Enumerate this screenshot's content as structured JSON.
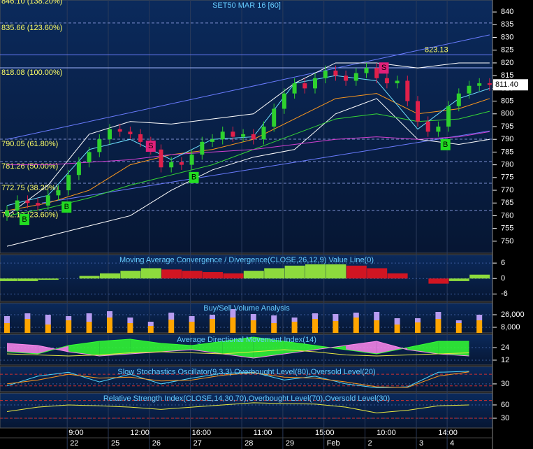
{
  "chart_data": [
    {
      "type": "candlestick",
      "title": "SET50 MAR 16  [60]",
      "time_labels": [
        null,
        null,
        null,
        null,
        null,
        null,
        "9:00",
        null,
        null,
        null,
        null,
        null,
        "12:00",
        null,
        null,
        null,
        null,
        null,
        "16:00",
        null,
        null,
        null,
        null,
        null,
        "11:00",
        null,
        null,
        null,
        null,
        null,
        "15:00",
        null,
        null,
        null,
        null,
        null,
        "10:00",
        null,
        null,
        null,
        null,
        null,
        "14:00",
        null,
        null,
        null,
        null,
        null
      ],
      "date_labels": [
        null,
        null,
        null,
        null,
        null,
        null,
        "22",
        null,
        null,
        null,
        "25",
        null,
        null,
        null,
        "26",
        null,
        null,
        null,
        "27",
        null,
        null,
        null,
        null,
        "28",
        null,
        null,
        null,
        "29",
        null,
        null,
        null,
        "Feb",
        null,
        null,
        null,
        "2",
        null,
        null,
        null,
        null,
        "3",
        null,
        null,
        "4",
        null,
        null,
        null,
        null
      ],
      "open": [
        760,
        762,
        766,
        765,
        764,
        768,
        770,
        776,
        781,
        785,
        790,
        794,
        793,
        792,
        789,
        786,
        779,
        781,
        780,
        784,
        789,
        790,
        793,
        791,
        792,
        790,
        795,
        802,
        808,
        812,
        810,
        814,
        817,
        815,
        813,
        816,
        818,
        814,
        812,
        813,
        805,
        797,
        793,
        795,
        803,
        808,
        811,
        812
      ],
      "high": [
        764,
        768,
        768,
        767,
        770,
        772,
        778,
        783,
        787,
        792,
        796,
        796,
        795,
        794,
        791,
        788,
        783,
        783,
        786,
        791,
        792,
        795,
        795,
        794,
        794,
        797,
        804,
        810,
        814,
        814,
        816,
        819,
        819,
        817,
        818,
        820,
        820,
        816,
        815,
        815,
        807,
        799,
        797,
        805,
        810,
        813,
        814,
        814
      ],
      "low": [
        758,
        760,
        763,
        762,
        762,
        766,
        768,
        774,
        779,
        783,
        788,
        791,
        790,
        787,
        784,
        777,
        777,
        778,
        778,
        782,
        787,
        788,
        789,
        789,
        788,
        788,
        793,
        800,
        806,
        808,
        808,
        812,
        813,
        811,
        811,
        814,
        812,
        810,
        810,
        803,
        795,
        791,
        791,
        793,
        801,
        806,
        809,
        809
      ],
      "close": [
        762,
        766,
        765,
        764,
        768,
        770,
        776,
        781,
        785,
        790,
        794,
        793,
        792,
        789,
        786,
        779,
        781,
        780,
        784,
        789,
        790,
        793,
        791,
        792,
        790,
        795,
        802,
        808,
        812,
        810,
        814,
        817,
        815,
        813,
        816,
        818,
        814,
        812,
        813,
        805,
        797,
        793,
        795,
        803,
        808,
        811,
        812,
        811.4
      ],
      "up_color": "#2ed12e",
      "down_color": "#e0204a",
      "ylim": [
        745.3,
        844.7
      ],
      "yticks": [
        750,
        755,
        760,
        765,
        770,
        775,
        780,
        785,
        790,
        795,
        800,
        805,
        810,
        815,
        820,
        825,
        830,
        835,
        840
      ],
      "last_price_label": "811.40",
      "levels": [
        {
          "value": 846.1,
          "label": "846.10 (138.20%)",
          "style": "dashed"
        },
        {
          "value": 835.66,
          "label": "835.66 (123.60%)",
          "style": "dashed"
        },
        {
          "value": 818.08,
          "label": "818.08 (100.00%)",
          "style": "solid"
        },
        {
          "value": 790.05,
          "label": "790.05 (61.80%)",
          "style": "dashed"
        },
        {
          "value": 781.26,
          "label": "781.26 (50.00%)",
          "style": "dashed"
        },
        {
          "value": 772.75,
          "label": "772.75 (38.20%)",
          "style": "dashed"
        },
        {
          "value": 762.13,
          "label": "762.13 (23.60%)",
          "style": "dashed"
        }
      ],
      "resistance": {
        "value": 823.13,
        "label": "823.13"
      },
      "overlays": [
        {
          "color": "#ffffff",
          "x": [
            0,
            4,
            8,
            12,
            16,
            20,
            24,
            28,
            32,
            36,
            40,
            44,
            47
          ],
          "values": [
            760,
            772,
            792,
            797,
            796,
            798,
            800,
            812,
            820,
            820,
            818,
            820,
            820
          ]
        },
        {
          "color": "#ffffff",
          "x": [
            0,
            4,
            8,
            12,
            16,
            20,
            24,
            28,
            32,
            36,
            40,
            44,
            47
          ],
          "values": [
            748,
            752,
            756,
            760,
            770,
            778,
            783,
            786,
            800,
            806,
            790,
            788,
            790
          ]
        },
        {
          "color": "#ff9a1e",
          "x": [
            0,
            4,
            8,
            12,
            16,
            20,
            24,
            28,
            32,
            36,
            40,
            44,
            47
          ],
          "values": [
            762,
            765,
            770,
            780,
            784,
            786,
            790,
            798,
            806,
            808,
            800,
            802,
            806
          ]
        },
        {
          "color": "#36d636",
          "x": [
            0,
            4,
            8,
            12,
            16,
            20,
            24,
            28,
            32,
            36,
            40,
            44,
            47
          ],
          "values": [
            760,
            763,
            767,
            772,
            776,
            780,
            786,
            792,
            798,
            800,
            797,
            798,
            801
          ]
        },
        {
          "color": "#d040d0",
          "x": [
            0,
            4,
            8,
            12,
            16,
            20,
            24,
            28,
            32,
            36,
            40,
            44,
            47
          ],
          "values": [
            780,
            780,
            781,
            782,
            784,
            785,
            786,
            788,
            790,
            791,
            790,
            791,
            793
          ]
        },
        {
          "color": "#6fe0ff",
          "x": [
            0,
            4,
            8,
            12,
            16,
            20,
            24,
            28,
            32,
            36,
            40,
            44,
            47
          ],
          "values": [
            764,
            768,
            786,
            790,
            782,
            790,
            791,
            812,
            815,
            813,
            794,
            806,
            810
          ]
        }
      ],
      "trendlines": [
        {
          "color": "#6a7cff",
          "x": [
            0,
            47
          ],
          "values": [
            790,
            831
          ]
        },
        {
          "color": "#6a7cff",
          "x": [
            3.4,
            47
          ],
          "values": [
            765,
            793.3
          ]
        }
      ],
      "signals": [
        {
          "label": "B",
          "color": "#22dd22",
          "x": 1.7,
          "y": 758.5
        },
        {
          "label": "B",
          "color": "#22dd22",
          "x": 5.8,
          "y": 763.4
        },
        {
          "label": "S",
          "color": "#e0207a",
          "x": 14,
          "y": 787.3
        },
        {
          "label": "B",
          "color": "#22dd22",
          "x": 18.2,
          "y": 775
        },
        {
          "label": "S",
          "color": "#e0207a",
          "x": 36.7,
          "y": 818
        },
        {
          "label": "B",
          "color": "#22dd22",
          "x": 42.7,
          "y": 787.9
        }
      ]
    },
    {
      "type": "bar",
      "title": "Moving Average Convergence / Divergence(CLOSE,26,12,9) Value Line(0)",
      "x": [
        0,
        2,
        4,
        6,
        8,
        10,
        12,
        14,
        16,
        18,
        20,
        22,
        24,
        26,
        28,
        30,
        32,
        34,
        36,
        38,
        40,
        42,
        44,
        46
      ],
      "values": [
        -1,
        -1,
        -0.5,
        0,
        1,
        2,
        3,
        4,
        3.5,
        3,
        2.5,
        2,
        3,
        4,
        5,
        5.5,
        5.5,
        5,
        4,
        2,
        0,
        -2,
        -1,
        1.5
      ],
      "up_color": "#9cf03c",
      "down_color": "#e8141e",
      "ylim": [
        -8.9,
        9.3
      ],
      "yticks": [
        6,
        0,
        -6
      ]
    },
    {
      "type": "bar",
      "title": "Buy/Sell Volume Analysis",
      "x": [
        0,
        2,
        4,
        6,
        8,
        10,
        12,
        14,
        16,
        18,
        20,
        22,
        24,
        26,
        28,
        30,
        32,
        34,
        36,
        38,
        40,
        42,
        44,
        46
      ],
      "series": [
        {
          "color": "#ffa500",
          "values": [
            14000,
            20000,
            12000,
            18000,
            16000,
            22000,
            14000,
            10000,
            19000,
            16000,
            20000,
            22000,
            18000,
            14000,
            16000,
            20000,
            17000,
            22000,
            18000,
            12000,
            15000,
            20000,
            14000,
            18000
          ]
        },
        {
          "color": "#b89cf0",
          "values": [
            10000,
            8000,
            14000,
            6000,
            12000,
            9000,
            8000,
            6000,
            10000,
            8000,
            6000,
            12000,
            9000,
            11000,
            6000,
            8000,
            10000,
            7000,
            12000,
            9000,
            6000,
            10000,
            4000,
            8000
          ]
        }
      ],
      "ylim": [
        0,
        43000
      ],
      "yticks": [
        {
          "value": 26000,
          "label": "26,000"
        },
        {
          "value": 8000,
          "label": "8,000"
        }
      ]
    },
    {
      "type": "area",
      "title": "Average Directional Movement Index(14)",
      "x": [
        0,
        3,
        6,
        9,
        12,
        15,
        18,
        21,
        24,
        27,
        30,
        33,
        36,
        39,
        42,
        45
      ],
      "series": [
        {
          "color": "#33ff33",
          "values": [
            20,
            18,
            26,
            30,
            32,
            28,
            26,
            30,
            34,
            30,
            26,
            22,
            18,
            24,
            30,
            30
          ]
        },
        {
          "color": "#ff88ee",
          "values": [
            28,
            26,
            20,
            16,
            18,
            20,
            22,
            18,
            14,
            18,
            22,
            26,
            30,
            22,
            18,
            16
          ]
        },
        {
          "color": "#e8e840",
          "values": [
            18,
            17,
            16,
            17,
            19,
            20,
            19,
            18,
            20,
            22,
            20,
            17,
            16,
            17,
            18,
            19
          ]
        }
      ],
      "ylim": [
        7.3,
        36.7
      ],
      "yticks": [
        24,
        12
      ]
    },
    {
      "type": "line",
      "title": "Slow Stochastics Oscillator(9,3,3) Overbought Level(80),Oversold Level(20)",
      "x": [
        0,
        3,
        6,
        9,
        12,
        15,
        18,
        21,
        24,
        27,
        30,
        33,
        36,
        39,
        42,
        45
      ],
      "series": [
        {
          "color": "#4fd8ff",
          "values": [
            20,
            70,
            90,
            40,
            80,
            30,
            60,
            85,
            90,
            50,
            70,
            30,
            10,
            15,
            90,
            95
          ]
        },
        {
          "color": "#ff9a1e",
          "values": [
            30,
            50,
            80,
            60,
            65,
            45,
            50,
            75,
            88,
            65,
            60,
            40,
            15,
            12,
            70,
            92
          ]
        }
      ],
      "levels": [
        80,
        20
      ],
      "ylim": [
        -10,
        120
      ],
      "yticks": [
        30
      ]
    },
    {
      "type": "line",
      "title": "Relative Strength Index(CLOSE,14,30,70),Overbought Level(70),Oversold Level(30)",
      "x": [
        0,
        3,
        6,
        9,
        12,
        15,
        18,
        21,
        24,
        27,
        30,
        33,
        36,
        39,
        42,
        45
      ],
      "series": [
        {
          "color": "#e8e840",
          "values": [
            45,
            55,
            60,
            58,
            55,
            50,
            55,
            60,
            65,
            63,
            62,
            55,
            42,
            48,
            58,
            60
          ]
        }
      ],
      "levels": [
        70,
        30
      ],
      "ylim": [
        7.9,
        86.8
      ],
      "yticks": [
        60,
        30
      ]
    }
  ]
}
